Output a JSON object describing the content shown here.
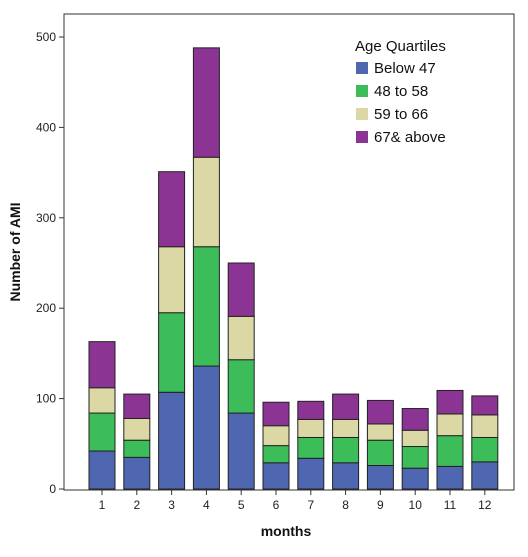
{
  "chart_data": {
    "type": "bar",
    "stacked": true,
    "xlabel": "months",
    "ylabel": "Number of AMI",
    "ylim": [
      0,
      500
    ],
    "yticks": [
      0,
      100,
      200,
      300,
      400,
      500
    ],
    "grid": false,
    "legend": {
      "title": "Age Quartiles",
      "placement": "top-right"
    },
    "categories": [
      "1",
      "2",
      "3",
      "4",
      "5",
      "6",
      "7",
      "8",
      "9",
      "10",
      "11",
      "12"
    ],
    "series": [
      {
        "name": "Below 47",
        "color": "#4e67b0",
        "values": [
          42,
          35,
          107,
          136,
          84,
          29,
          34,
          29,
          26,
          23,
          25,
          30
        ]
      },
      {
        "name": "48 to 58",
        "color": "#3cbd5a",
        "values": [
          42,
          19,
          88,
          132,
          59,
          19,
          23,
          28,
          28,
          24,
          34,
          27
        ]
      },
      {
        "name": "59 to 66",
        "color": "#dbd8a5",
        "values": [
          28,
          24,
          73,
          99,
          48,
          22,
          20,
          20,
          18,
          18,
          24,
          25
        ]
      },
      {
        "name": "67& above",
        "color": "#8c3494",
        "values": [
          51,
          27,
          83,
          121,
          59,
          26,
          20,
          28,
          26,
          24,
          26,
          21
        ]
      }
    ]
  }
}
